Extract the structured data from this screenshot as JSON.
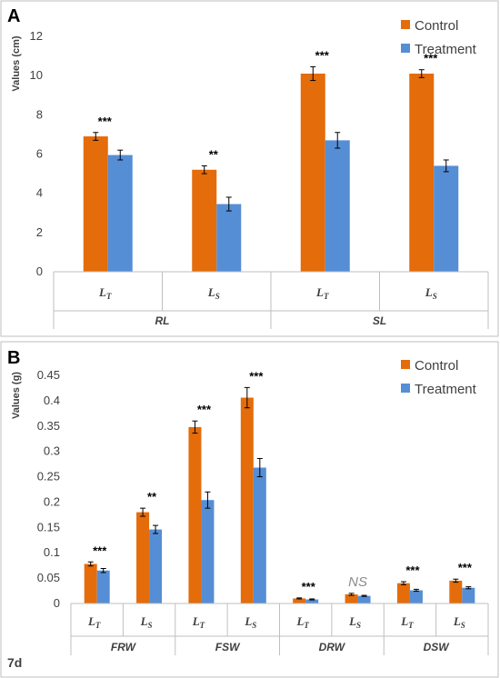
{
  "footer_label": "7d",
  "colors": {
    "control": "#e46c0a",
    "treatment": "#558ed5"
  },
  "chart_data": [
    {
      "panel": "A",
      "type": "bar",
      "ylabel": "Values (cm)",
      "ylim": [
        0,
        12
      ],
      "yticks": [
        0,
        2,
        4,
        6,
        8,
        10,
        12
      ],
      "ytick_labels": [
        "0",
        "2",
        "4",
        "6",
        "8",
        "10",
        "12"
      ],
      "legend": [
        "Control",
        "Treatment"
      ],
      "legend_position": "top-right",
      "groups": [
        {
          "label": "RL",
          "categories": [
            {
              "main": "L",
              "sub": "T"
            },
            {
              "main": "L",
              "sub": "S"
            }
          ]
        },
        {
          "label": "SL",
          "categories": [
            {
              "main": "L",
              "sub": "T"
            },
            {
              "main": "L",
              "sub": "S"
            }
          ]
        }
      ],
      "series": [
        {
          "name": "Control",
          "values": [
            6.9,
            5.2,
            10.1,
            10.1
          ],
          "errors": [
            0.2,
            0.2,
            0.35,
            0.2
          ]
        },
        {
          "name": "Treatment",
          "values": [
            5.95,
            3.45,
            6.7,
            5.4
          ],
          "errors": [
            0.25,
            0.35,
            0.4,
            0.3
          ]
        }
      ],
      "significance": [
        "***",
        "**",
        "***",
        "***"
      ]
    },
    {
      "panel": "B",
      "type": "bar",
      "ylabel": "Values (g)",
      "ylim": [
        0,
        0.45
      ],
      "yticks": [
        0,
        0.05,
        0.1,
        0.15,
        0.2,
        0.25,
        0.3,
        0.35,
        0.4,
        0.45
      ],
      "ytick_labels": [
        "0",
        "0.05",
        "0.1",
        "0.15",
        "0.2",
        "0.25",
        "0.3",
        "0.35",
        "0.4",
        "0.45"
      ],
      "legend": [
        "Control",
        "Treatment"
      ],
      "legend_position": "top-right",
      "groups": [
        {
          "label": "FRW",
          "categories": [
            {
              "main": "L",
              "sub": "T"
            },
            {
              "main": "L",
              "sub": "S"
            }
          ]
        },
        {
          "label": "FSW",
          "categories": [
            {
              "main": "L",
              "sub": "T"
            },
            {
              "main": "L",
              "sub": "S"
            }
          ]
        },
        {
          "label": "DRW",
          "categories": [
            {
              "main": "L",
              "sub": "T"
            },
            {
              "main": "L",
              "sub": "S"
            }
          ]
        },
        {
          "label": "DSW",
          "categories": [
            {
              "main": "L",
              "sub": "T"
            },
            {
              "main": "L",
              "sub": "S"
            }
          ]
        }
      ],
      "series": [
        {
          "name": "Control",
          "values": [
            0.078,
            0.18,
            0.348,
            0.406,
            0.01,
            0.018,
            0.04,
            0.045
          ],
          "errors": [
            0.004,
            0.008,
            0.012,
            0.02,
            0.001,
            0.002,
            0.003,
            0.003
          ]
        },
        {
          "name": "Treatment",
          "values": [
            0.065,
            0.146,
            0.204,
            0.268,
            0.008,
            0.015,
            0.026,
            0.031
          ],
          "errors": [
            0.004,
            0.008,
            0.016,
            0.018,
            0.001,
            0.001,
            0.002,
            0.002
          ]
        }
      ],
      "significance": [
        "***",
        "**",
        "***",
        "***",
        "***",
        "NS",
        "***",
        "***"
      ]
    }
  ]
}
